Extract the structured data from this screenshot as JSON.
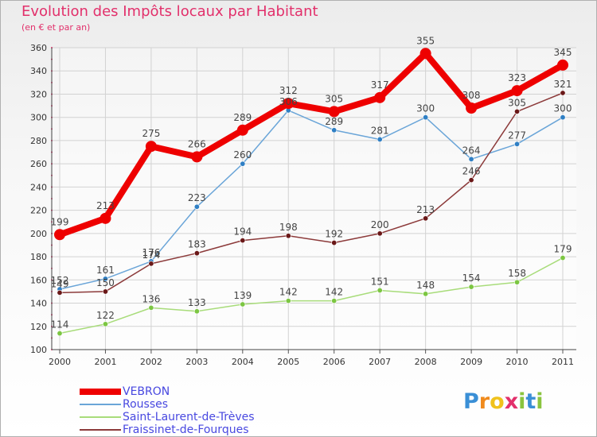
{
  "title": "Evolution des Impôts locaux par Habitant",
  "subtitle": "(en € et par an)",
  "logo": {
    "letters": [
      "P",
      "r",
      "o",
      "x",
      "i",
      "t",
      "i"
    ],
    "colors": [
      "#3a8fd6",
      "#f08a1c",
      "#f0c21c",
      "#e2306b",
      "#8ac43f",
      "#3a8fd6",
      "#8ac43f"
    ]
  },
  "chart_data": {
    "type": "line",
    "title": "Evolution des Impôts locaux par Habitant",
    "ylabel": "(en € et par an)",
    "xlabel": "",
    "categories": [
      "2000",
      "2001",
      "2002",
      "2003",
      "2004",
      "2005",
      "2006",
      "2007",
      "2008",
      "2009",
      "2010",
      "2011"
    ],
    "ylim": [
      100,
      360
    ],
    "yticks": [
      100,
      120,
      140,
      160,
      180,
      200,
      220,
      240,
      260,
      280,
      300,
      320,
      340,
      360
    ],
    "grid": true,
    "legend_position": "bottom-left",
    "series": [
      {
        "name": "VEBRON",
        "color": "#ee0000",
        "marker_color": "#ee0000",
        "emphasis": "thick",
        "values": [
          199,
          213,
          275,
          266,
          289,
          312,
          305,
          317,
          355,
          308,
          323,
          345
        ],
        "labels": [
          "199",
          "213",
          "275",
          "266",
          "289",
          "312",
          "305",
          "317",
          "355",
          "308",
          "323",
          "345"
        ]
      },
      {
        "name": "Rousses",
        "color": "#6aa5d8",
        "marker_color": "#2f7fc4",
        "emphasis": "thin",
        "values": [
          152,
          161,
          176,
          223,
          260,
          306,
          289,
          281,
          300,
          264,
          277,
          300
        ],
        "labels": [
          "152",
          "161",
          "176",
          "223",
          "260",
          "306",
          "289",
          "281",
          "300",
          "264",
          "277",
          "300"
        ]
      },
      {
        "name": "Saint-Laurent-de-Trèves",
        "color": "#a8dc7a",
        "marker_color": "#7cc642",
        "emphasis": "thin",
        "values": [
          114,
          122,
          136,
          133,
          139,
          142,
          142,
          151,
          148,
          154,
          158,
          179
        ],
        "labels": [
          "114",
          "122",
          "136",
          "133",
          "139",
          "142",
          "142",
          "151",
          "148",
          "154",
          "158",
          "179"
        ]
      },
      {
        "name": "Fraissinet-de-Fourques",
        "color": "#8c3a3a",
        "marker_color": "#6a1818",
        "emphasis": "thin",
        "values": [
          149,
          150,
          174,
          183,
          194,
          198,
          192,
          200,
          213,
          246,
          305,
          321
        ],
        "labels": [
          "149",
          "150",
          "174",
          "183",
          "194",
          "198",
          "192",
          "200",
          "213",
          "246",
          "305",
          "321"
        ]
      }
    ]
  }
}
